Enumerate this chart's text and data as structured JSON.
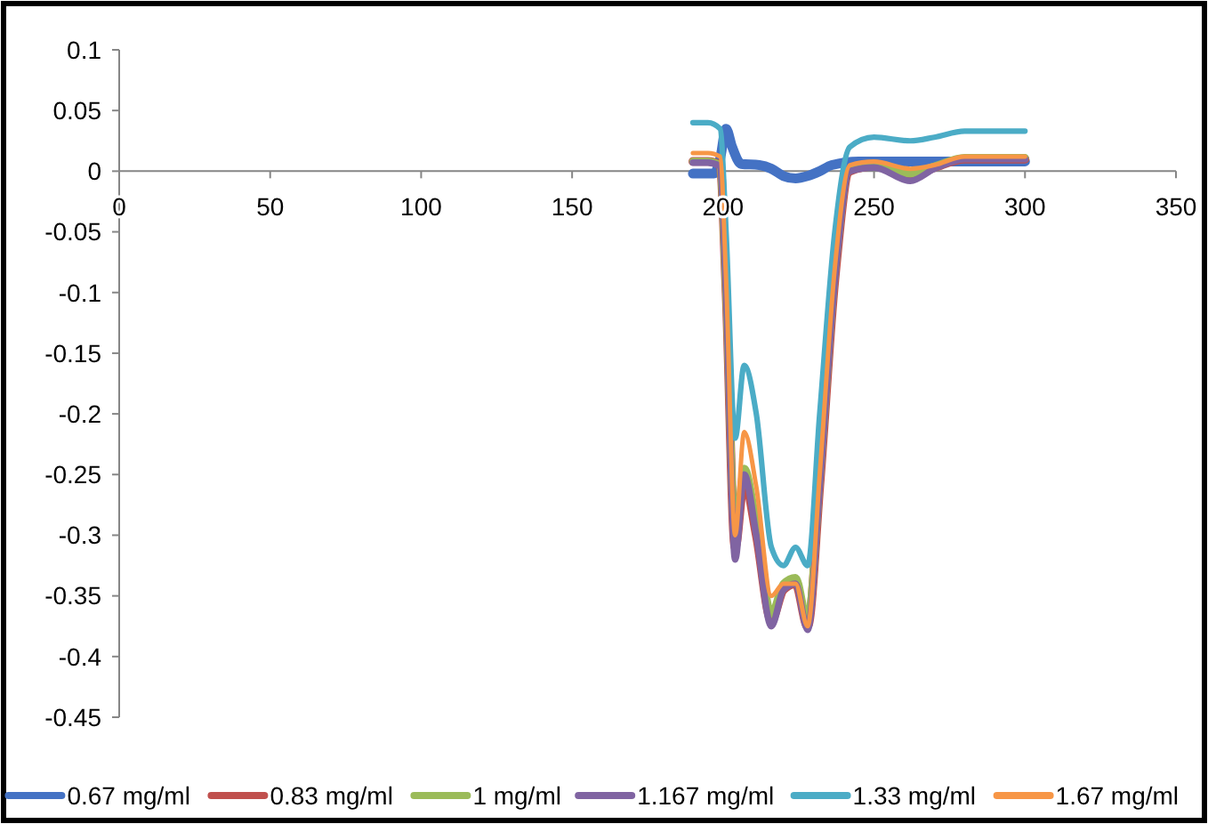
{
  "chart_data": {
    "type": "line",
    "x": [
      190,
      195,
      199,
      201,
      204,
      207,
      211,
      216,
      220,
      224,
      228,
      232,
      237,
      242,
      250,
      262,
      270,
      280,
      300
    ],
    "xlim": [
      0,
      350
    ],
    "xticks": [
      0,
      50,
      100,
      150,
      200,
      250,
      300,
      350
    ],
    "ylim": [
      -0.45,
      0.1
    ],
    "yticks": [
      0.1,
      0.05,
      0,
      -0.05,
      -0.1,
      -0.15,
      -0.2,
      -0.25,
      -0.3,
      -0.35,
      -0.4,
      -0.45
    ],
    "grid": false,
    "legend": "bottom",
    "marker": "none",
    "line_style": "solid",
    "series": [
      {
        "name": "0.67 mg/ml",
        "color": "#4472c4",
        "x": [
          190,
          197,
          199,
          201,
          203,
          206,
          212,
          216,
          220,
          224,
          228,
          232,
          236,
          245,
          260,
          300
        ],
        "values": [
          -0.002,
          -0.002,
          0.01,
          0.035,
          0.02,
          0.006,
          0.005,
          0.002,
          -0.004,
          -0.006,
          -0.004,
          0,
          0.005,
          0.008,
          0.008,
          0.008
        ]
      },
      {
        "name": "0.83 mg/ml",
        "color": "#c0504d",
        "values": [
          0.008,
          0.008,
          0.005,
          -0.1,
          -0.31,
          -0.255,
          -0.3,
          -0.37,
          -0.345,
          -0.34,
          -0.375,
          -0.26,
          -0.09,
          0,
          0.004,
          -0.004,
          0.003,
          0.01,
          0.01
        ]
      },
      {
        "name": "1 mg/ml",
        "color": "#9bbb59",
        "values": [
          0.008,
          0.008,
          0.005,
          -0.1,
          -0.3,
          -0.245,
          -0.29,
          -0.365,
          -0.34,
          -0.335,
          -0.37,
          -0.255,
          -0.085,
          0.002,
          0.005,
          -0.002,
          0.004,
          0.011,
          0.011
        ]
      },
      {
        "name": "1.167 mg/ml",
        "color": "#8064a2",
        "values": [
          0.007,
          0.007,
          0.004,
          -0.1,
          -0.32,
          -0.25,
          -0.3,
          -0.375,
          -0.345,
          -0.34,
          -0.378,
          -0.26,
          -0.09,
          0,
          0.003,
          -0.008,
          0.002,
          0.01,
          0.01
        ]
      },
      {
        "name": "1.33 mg/ml",
        "color": "#4bacc6",
        "values": [
          0.04,
          0.04,
          0.035,
          -0.05,
          -0.22,
          -0.16,
          -0.2,
          -0.31,
          -0.325,
          -0.31,
          -0.325,
          -0.2,
          -0.05,
          0.02,
          0.028,
          0.025,
          0.028,
          0.033,
          0.033
        ]
      },
      {
        "name": "1.67 mg/ml",
        "color": "#f79646",
        "values": [
          0.015,
          0.015,
          0.012,
          -0.09,
          -0.3,
          -0.215,
          -0.26,
          -0.35,
          -0.34,
          -0.34,
          -0.375,
          -0.25,
          -0.08,
          0.005,
          0.008,
          0.002,
          0.005,
          0.012,
          0.012
        ]
      }
    ]
  }
}
